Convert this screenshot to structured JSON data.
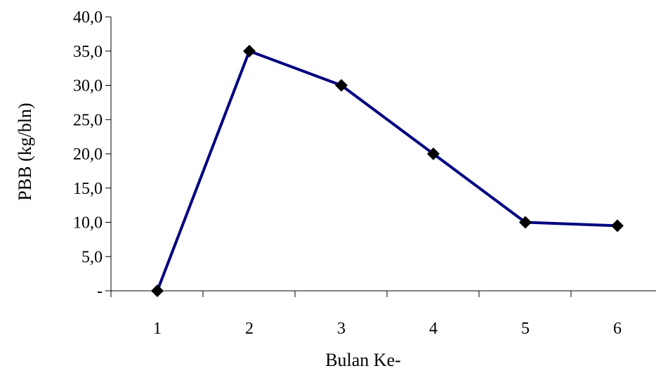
{
  "chart_data": {
    "type": "line",
    "categories": [
      "1",
      "2",
      "3",
      "4",
      "5",
      "6"
    ],
    "series": [
      {
        "values": [
          0,
          35.0,
          30.0,
          20.0,
          10.0,
          9.5
        ],
        "color": "#000080",
        "marker": "diamond",
        "marker_color": "#000000"
      }
    ],
    "xlabel": "Bulan Ke-",
    "ylabel": "PBB (kg/bln)",
    "ylim": [
      0,
      40
    ],
    "y_ticks": [
      0,
      5,
      10,
      15,
      20,
      25,
      30,
      35,
      40
    ],
    "y_tick_labels": [
      "-",
      "5,0",
      "10,0",
      "15,0",
      "20,0",
      "25,0",
      "30,0",
      "35,0",
      "40,0"
    ],
    "grid": false,
    "legend": "none"
  }
}
